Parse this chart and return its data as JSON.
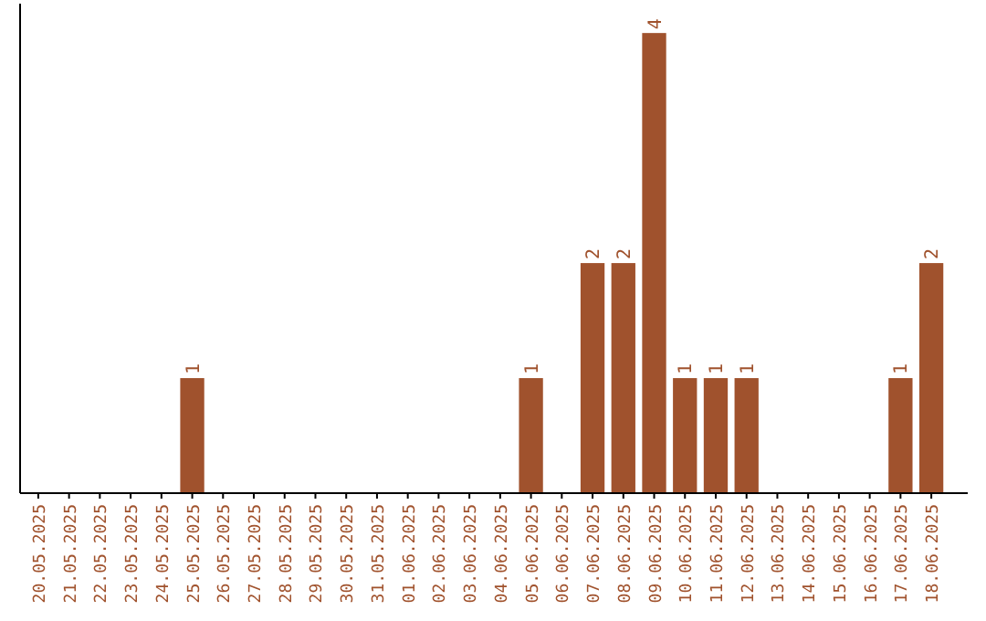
{
  "chart_data": {
    "type": "bar",
    "categories": [
      "20.05.2025",
      "21.05.2025",
      "22.05.2025",
      "23.05.2025",
      "24.05.2025",
      "25.05.2025",
      "26.05.2025",
      "27.05.2025",
      "28.05.2025",
      "29.05.2025",
      "30.05.2025",
      "31.05.2025",
      "01.06.2025",
      "02.06.2025",
      "03.06.2025",
      "04.06.2025",
      "05.06.2025",
      "06.06.2025",
      "07.06.2025",
      "08.06.2025",
      "09.06.2025",
      "10.06.2025",
      "11.06.2025",
      "12.06.2025",
      "13.06.2025",
      "14.06.2025",
      "15.06.2025",
      "16.06.2025",
      "17.06.2025",
      "18.06.2025"
    ],
    "values": [
      0,
      0,
      0,
      0,
      0,
      1,
      0,
      0,
      0,
      0,
      0,
      0,
      0,
      0,
      0,
      0,
      1,
      0,
      2,
      2,
      4,
      1,
      1,
      1,
      0,
      0,
      0,
      0,
      1,
      2
    ],
    "value_labels": [
      null,
      null,
      null,
      null,
      null,
      "1",
      null,
      null,
      null,
      null,
      null,
      null,
      null,
      null,
      null,
      null,
      "1",
      null,
      "2",
      "2",
      "4",
      "1",
      "1",
      "1",
      null,
      null,
      null,
      null,
      "1",
      "2"
    ],
    "color": "#a0522d"
  }
}
